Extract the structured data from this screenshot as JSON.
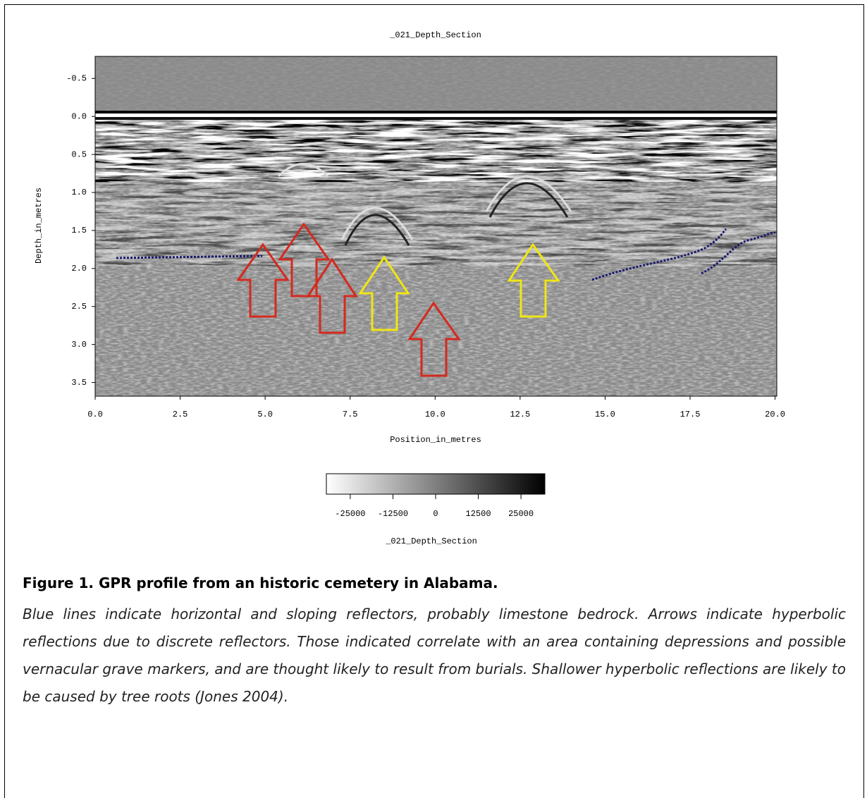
{
  "chart_data": {
    "type": "radargram",
    "title": "_021_Depth_Section",
    "xlabel": "Position_in_metres",
    "ylabel": "Depth_in_metres",
    "xlim": [
      0,
      20.05
    ],
    "ylim": [
      -0.79,
      3.68
    ],
    "xticks": [
      {
        "value": 0,
        "label": "0.0"
      },
      2.5,
      {
        "value": 5,
        "label": "5.0"
      },
      7.5,
      {
        "value": 10,
        "label": "10.0"
      },
      12.5,
      {
        "value": 15,
        "label": "15.0"
      },
      17.5,
      {
        "value": 20,
        "label": "20.0"
      }
    ],
    "yticks": [
      -0.5,
      {
        "value": 0,
        "label": "0.0"
      },
      0.5,
      {
        "value": 1,
        "label": "1.0"
      },
      1.5,
      {
        "value": 2,
        "label": "2.0"
      },
      2.5,
      {
        "value": 3,
        "label": "3.0"
      },
      3.5
    ],
    "colorbar": {
      "zlim": [
        -32000,
        32000
      ],
      "ticks": [
        -25000,
        -12500,
        0,
        12500,
        25000
      ],
      "label": "_021_Depth_Section"
    }
  },
  "caption": {
    "title": "Figure 1. GPR profile from an historic cemetery in Alabama.",
    "body": "Blue lines indicate horizontal and sloping reflectors, probably limestone bedrock. Arrows indicate hyperbolic reflections due to discrete reflectors. Those indicated correlate with an area containing depressions and possible vernacular grave markers, and are thought likely to result from burials. Shallower hyperbolic reflections are likely to be caused by tree roots (Jones 2004)."
  }
}
